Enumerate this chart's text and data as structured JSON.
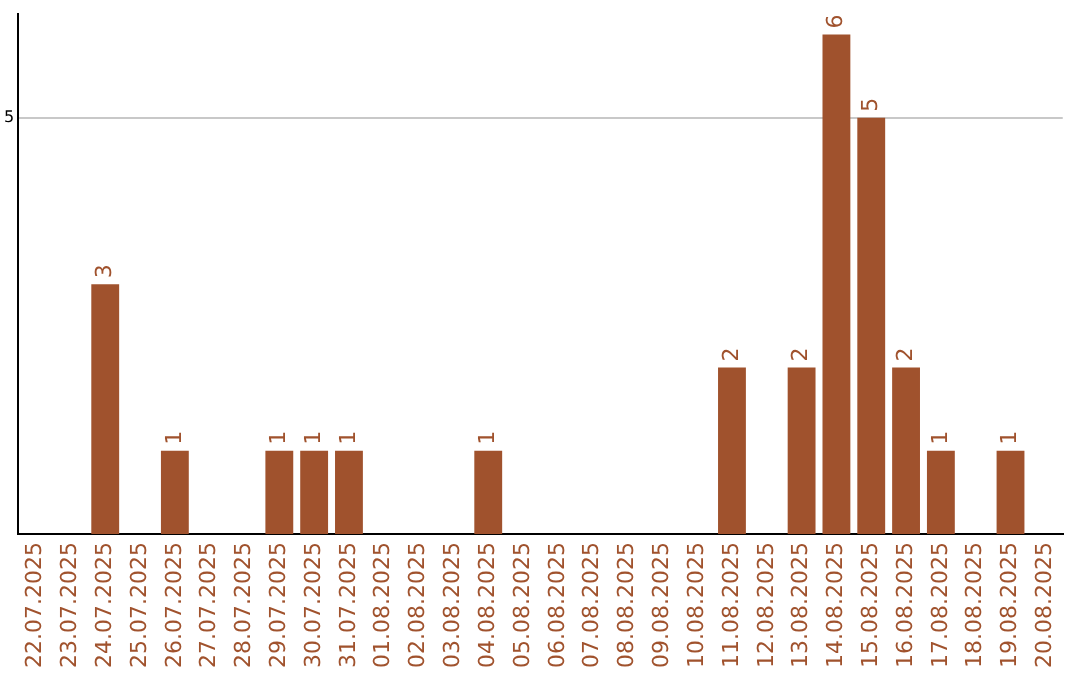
{
  "chart_data": {
    "type": "bar",
    "categories": [
      "22.07.2025",
      "23.07.2025",
      "24.07.2025",
      "25.07.2025",
      "26.07.2025",
      "27.07.2025",
      "28.07.2025",
      "29.07.2025",
      "30.07.2025",
      "31.07.2025",
      "01.08.2025",
      "02.08.2025",
      "03.08.2025",
      "04.08.2025",
      "05.08.2025",
      "06.08.2025",
      "07.08.2025",
      "08.08.2025",
      "09.08.2025",
      "10.08.2025",
      "11.08.2025",
      "12.08.2025",
      "13.08.2025",
      "14.08.2025",
      "15.08.2025",
      "16.08.2025",
      "17.08.2025",
      "18.08.2025",
      "19.08.2025",
      "20.08.2025"
    ],
    "values": [
      0,
      0,
      3,
      0,
      1,
      0,
      0,
      1,
      1,
      1,
      0,
      0,
      0,
      1,
      0,
      0,
      0,
      0,
      0,
      0,
      2,
      0,
      2,
      6,
      5,
      2,
      1,
      0,
      1,
      0
    ],
    "value_labels": [
      null,
      null,
      "3",
      null,
      "1",
      null,
      null,
      "1",
      "1",
      "1",
      null,
      null,
      null,
      "1",
      null,
      null,
      null,
      null,
      null,
      null,
      "2",
      null,
      "2",
      "6",
      "5",
      "2",
      "1",
      null,
      "1",
      null
    ],
    "color": "#a0522d",
    "ylim": [
      0,
      6.25
    ],
    "yticks": [
      5
    ],
    "grid": "y",
    "legend": false
  }
}
